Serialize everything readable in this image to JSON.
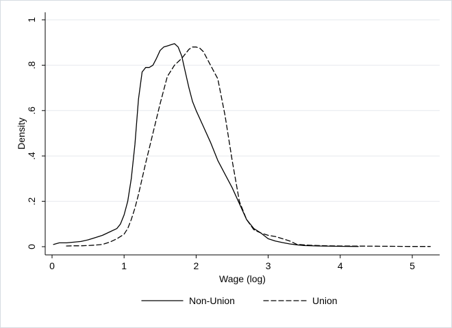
{
  "chart_data": {
    "type": "line",
    "xlabel": "Wage (log)",
    "ylabel": "Density",
    "xlim": [
      0,
      5.3
    ],
    "ylim": [
      0,
      1
    ],
    "xticks": [
      0,
      1,
      2,
      3,
      4,
      5
    ],
    "xtick_labels": [
      "0",
      "1",
      "2",
      "3",
      "4",
      "5"
    ],
    "yticks": [
      0,
      0.2,
      0.4,
      0.6,
      0.8,
      1
    ],
    "ytick_labels": [
      "0",
      ".2",
      ".4",
      ".6",
      ".8",
      "1"
    ],
    "grid": true,
    "legend_position": "bottom",
    "series": [
      {
        "name": "Non-Union",
        "dash": "solid",
        "x": [
          0.02,
          0.1,
          0.2,
          0.3,
          0.4,
          0.5,
          0.6,
          0.7,
          0.8,
          0.9,
          0.95,
          1.0,
          1.05,
          1.1,
          1.15,
          1.2,
          1.25,
          1.3,
          1.35,
          1.4,
          1.45,
          1.5,
          1.55,
          1.6,
          1.65,
          1.7,
          1.75,
          1.8,
          1.85,
          1.9,
          1.95,
          2.0,
          2.1,
          2.2,
          2.3,
          2.4,
          2.5,
          2.6,
          2.7,
          2.8,
          2.9,
          3.0,
          3.1,
          3.2,
          3.3,
          3.4,
          3.5,
          3.7,
          4.0,
          4.25
        ],
        "y": [
          0.01,
          0.017,
          0.017,
          0.02,
          0.023,
          0.03,
          0.04,
          0.05,
          0.065,
          0.08,
          0.1,
          0.14,
          0.2,
          0.3,
          0.45,
          0.65,
          0.77,
          0.79,
          0.79,
          0.8,
          0.83,
          0.865,
          0.88,
          0.885,
          0.89,
          0.895,
          0.88,
          0.84,
          0.77,
          0.7,
          0.64,
          0.6,
          0.53,
          0.46,
          0.38,
          0.32,
          0.26,
          0.19,
          0.12,
          0.08,
          0.06,
          0.035,
          0.025,
          0.018,
          0.012,
          0.008,
          0.005,
          0.003,
          0.0015,
          0.001
        ]
      },
      {
        "name": "Union",
        "dash": "dashed",
        "x": [
          0.2,
          0.3,
          0.4,
          0.5,
          0.6,
          0.7,
          0.8,
          0.9,
          1.0,
          1.05,
          1.1,
          1.15,
          1.2,
          1.3,
          1.4,
          1.5,
          1.6,
          1.7,
          1.8,
          1.9,
          1.95,
          2.0,
          2.05,
          2.1,
          2.2,
          2.3,
          2.4,
          2.5,
          2.6,
          2.7,
          2.8,
          2.9,
          3.0,
          3.1,
          3.2,
          3.3,
          3.4,
          3.6,
          3.8,
          4.0,
          4.5,
          5.0,
          5.25
        ],
        "y": [
          0.003,
          0.004,
          0.004,
          0.005,
          0.007,
          0.01,
          0.02,
          0.035,
          0.055,
          0.08,
          0.12,
          0.17,
          0.23,
          0.37,
          0.5,
          0.63,
          0.75,
          0.8,
          0.83,
          0.87,
          0.88,
          0.88,
          0.875,
          0.86,
          0.8,
          0.74,
          0.58,
          0.38,
          0.2,
          0.12,
          0.075,
          0.06,
          0.05,
          0.045,
          0.035,
          0.025,
          0.01,
          0.006,
          0.004,
          0.003,
          0.002,
          0.001,
          0.001
        ]
      }
    ]
  }
}
